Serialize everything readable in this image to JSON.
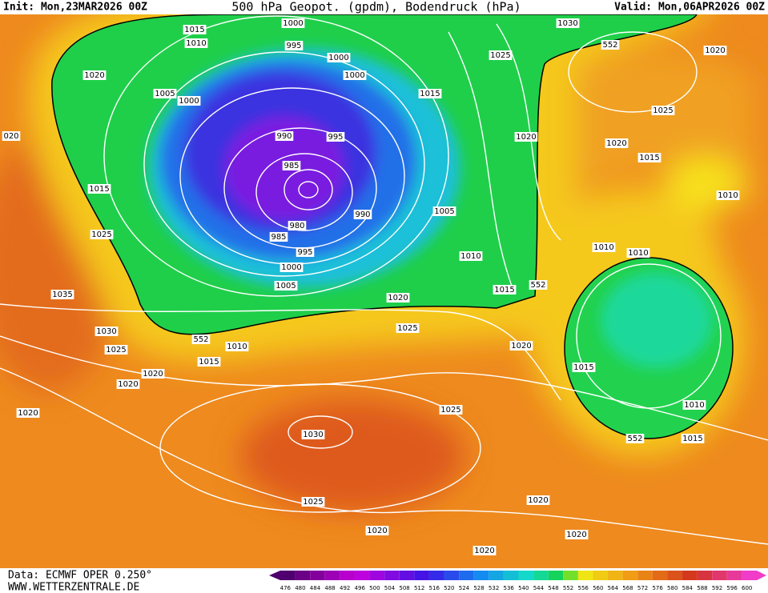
{
  "header": {
    "init": "Init: Mon,23MAR2026 00Z",
    "title": "500 hPa Geopot. (gpdm), Bodendruck (hPa)",
    "valid": "Valid: Mon,06APR2026 00Z"
  },
  "footer": {
    "data": "Data: ECMWF OPER 0.250°",
    "site": "WWW.WETTERZENTRALE.DE"
  },
  "isobar_labels": [
    "1015",
    "1010",
    "1000",
    "995",
    "1000",
    "1000",
    "1020",
    "1005",
    "1000",
    "1015",
    "990",
    "995",
    "985",
    "990",
    "980",
    "985",
    "995",
    "1000",
    "1005",
    "1015",
    "1025",
    "1035",
    "1030",
    "1025",
    "1020",
    "1020",
    "552",
    "1010",
    "1015",
    "1020",
    "1025",
    "1005",
    "1010",
    "1015",
    "552",
    "1020",
    "1030",
    "1025",
    "552",
    "1020",
    "1025",
    "1020",
    "1015",
    "1010",
    "1020",
    "1010",
    "1010",
    "1015",
    "1010",
    "552",
    "1015",
    "1020",
    "1025",
    "1030",
    "1025",
    "1020",
    "1020",
    "1020",
    "1020",
    "020"
  ],
  "colorbar": [
    476,
    480,
    484,
    488,
    492,
    496,
    500,
    504,
    508,
    512,
    516,
    520,
    524,
    528,
    532,
    536,
    540,
    544,
    548,
    552,
    556,
    560,
    564,
    568,
    572,
    576,
    580,
    584,
    588,
    592,
    596,
    600
  ]
}
